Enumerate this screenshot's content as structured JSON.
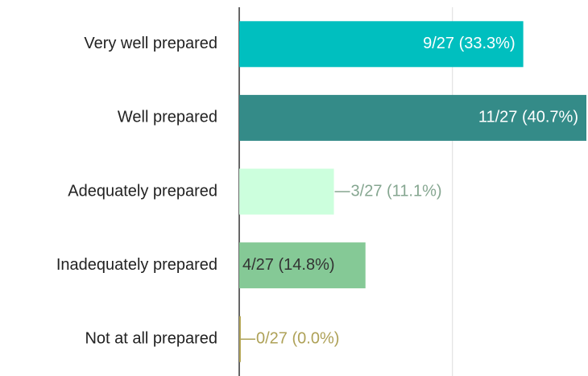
{
  "chart_data": {
    "type": "hbar",
    "categories": [
      "Very well prepared",
      "Well prepared",
      "Adequately prepared",
      "Inadequately prepared",
      "Not at all prepared"
    ],
    "values": [
      33.3,
      40.7,
      11.1,
      14.8,
      0
    ],
    "value_labels": [
      "9/27 (33.3%)",
      "11/27 (40.7%)",
      "3/27 (11.1%)",
      "4/27 (14.8%)",
      "0/27 (0.0%)"
    ],
    "colors": [
      "#00bfbf",
      "#348b88",
      "#ccffdd",
      "#85c996",
      "#b7a95c"
    ],
    "xlim": [
      0,
      40.7
    ],
    "xticks": [
      0,
      25
    ],
    "grid": true
  }
}
